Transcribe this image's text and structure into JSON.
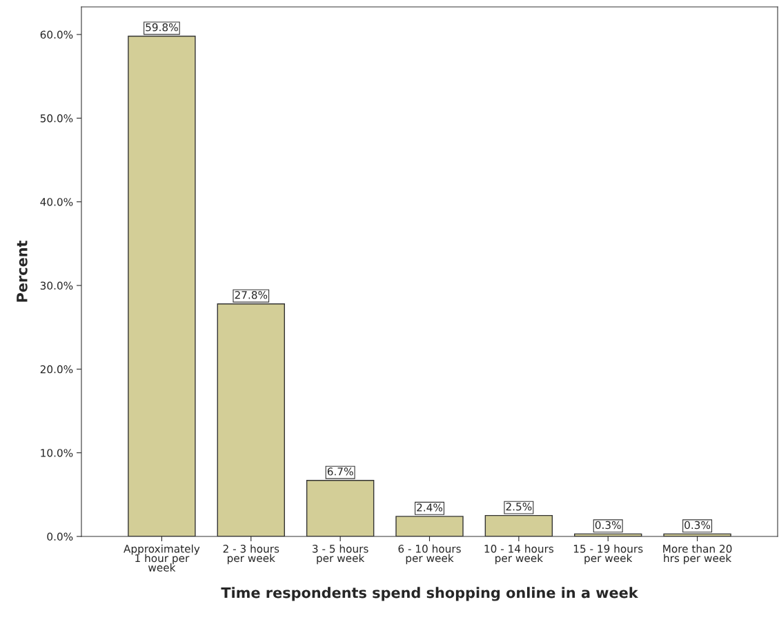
{
  "chart_data": {
    "type": "bar",
    "xlabel": "Time respondents spend shopping online in a week",
    "ylabel": "Percent",
    "categories": [
      "Approximately\n1 hour per\nweek",
      "2 - 3 hours\nper week",
      "3 - 5 hours\nper week",
      "6 - 10 hours\nper week",
      "10 - 14 hours\nper week",
      "15 - 19 hours\nper week",
      "More than 20\nhrs per week"
    ],
    "values": [
      59.8,
      27.8,
      6.7,
      2.4,
      2.5,
      0.3,
      0.3
    ],
    "value_labels": [
      "59.8%",
      "27.8%",
      "6.7%",
      "2.4%",
      "2.5%",
      "0.3%",
      "0.3%"
    ],
    "color": "#d3ce97",
    "ylim": [
      0,
      63.3
    ],
    "yticks": [
      {
        "value": 0,
        "label": "0.0%"
      },
      {
        "value": 10,
        "label": "10.0%"
      },
      {
        "value": 20,
        "label": "20.0%"
      },
      {
        "value": 30,
        "label": "30.0%"
      },
      {
        "value": 40,
        "label": "40.0%"
      },
      {
        "value": 50,
        "label": "50.0%"
      },
      {
        "value": 60,
        "label": "60.0%"
      }
    ],
    "grid": false,
    "legend": false
  }
}
